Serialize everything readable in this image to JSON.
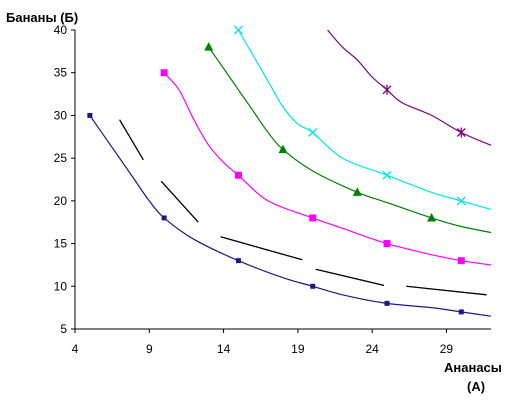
{
  "chart_data": {
    "type": "line",
    "ylabel": "Бананы (Б)",
    "xlabel_line1": "Ананасы",
    "xlabel_line2": "(А)",
    "xlim": [
      4,
      32
    ],
    "ylim": [
      5,
      40
    ],
    "xticks": [
      4,
      9,
      14,
      19,
      24,
      29
    ],
    "yticks": [
      5,
      10,
      15,
      20,
      25,
      30,
      35,
      40
    ],
    "grid": false,
    "legend": "none",
    "series": [
      {
        "color": "#1a1a80",
        "marker": "square-small",
        "curve": [
          [
            5,
            30
          ],
          [
            6,
            27.5
          ],
          [
            7,
            25
          ],
          [
            8,
            22.5
          ],
          [
            9,
            20
          ],
          [
            10,
            18
          ],
          [
            12,
            15.5
          ],
          [
            15,
            13
          ],
          [
            18,
            11
          ],
          [
            20,
            10
          ],
          [
            22,
            9
          ],
          [
            25,
            8
          ],
          [
            28,
            7.5
          ],
          [
            30,
            7
          ],
          [
            32,
            6.5
          ]
        ],
        "markers": [
          [
            5,
            30
          ],
          [
            10,
            18
          ],
          [
            15,
            13
          ],
          [
            20,
            10
          ],
          [
            25,
            8
          ],
          [
            30,
            7
          ]
        ]
      },
      {
        "color": "#ff00ff",
        "marker": "square",
        "curve": [
          [
            10,
            35
          ],
          [
            11,
            33
          ],
          [
            12,
            29.5
          ],
          [
            13,
            26.5
          ],
          [
            14,
            24.5
          ],
          [
            15,
            23
          ],
          [
            17,
            20
          ],
          [
            20,
            18
          ],
          [
            22,
            16.8
          ],
          [
            25,
            15
          ],
          [
            28,
            13.7
          ],
          [
            30,
            13
          ],
          [
            32,
            12.5
          ]
        ],
        "markers": [
          [
            10,
            35
          ],
          [
            15,
            23
          ],
          [
            20,
            18
          ],
          [
            25,
            15
          ],
          [
            30,
            13
          ]
        ]
      },
      {
        "color": "#008000",
        "marker": "triangle",
        "curve": [
          [
            13,
            38
          ],
          [
            14,
            35.5
          ],
          [
            15,
            33
          ],
          [
            16,
            30.5
          ],
          [
            17,
            28
          ],
          [
            18,
            26
          ],
          [
            20,
            23.5
          ],
          [
            23,
            21
          ],
          [
            25,
            19.8
          ],
          [
            28,
            18
          ],
          [
            30,
            17
          ],
          [
            32,
            16.3
          ]
        ],
        "markers": [
          [
            13,
            38
          ],
          [
            18,
            26
          ],
          [
            23,
            21
          ],
          [
            28,
            18
          ]
        ]
      },
      {
        "color": "#00e5ee",
        "marker": "cross",
        "curve": [
          [
            15,
            40
          ],
          [
            16,
            37
          ],
          [
            17,
            34
          ],
          [
            18,
            31
          ],
          [
            19,
            29
          ],
          [
            20,
            28
          ],
          [
            22,
            25
          ],
          [
            25,
            23
          ],
          [
            28,
            21
          ],
          [
            30,
            20
          ],
          [
            32,
            19
          ]
        ],
        "markers": [
          [
            15,
            40
          ],
          [
            20,
            28
          ],
          [
            25,
            23
          ],
          [
            30,
            20
          ]
        ]
      },
      {
        "color": "#800080",
        "marker": "asterisk",
        "curve": [
          [
            21,
            40
          ],
          [
            22,
            38
          ],
          [
            23,
            36.5
          ],
          [
            24,
            34.5
          ],
          [
            25,
            33
          ],
          [
            26,
            31.5
          ],
          [
            28,
            30
          ],
          [
            30,
            28
          ],
          [
            32,
            26.5
          ]
        ],
        "markers": [
          [
            25,
            33
          ],
          [
            30,
            28
          ]
        ]
      }
    ],
    "budget_segments": [
      [
        [
          7,
          29.5
        ],
        [
          8.6,
          24.8
        ]
      ],
      [
        [
          9.8,
          22.3
        ],
        [
          12.3,
          17.5
        ]
      ],
      [
        [
          13.8,
          15.8
        ],
        [
          19.3,
          13.1
        ]
      ],
      [
        [
          20.2,
          12
        ],
        [
          24.8,
          10.1
        ]
      ],
      [
        [
          26.3,
          10
        ],
        [
          31.7,
          9
        ]
      ]
    ]
  }
}
